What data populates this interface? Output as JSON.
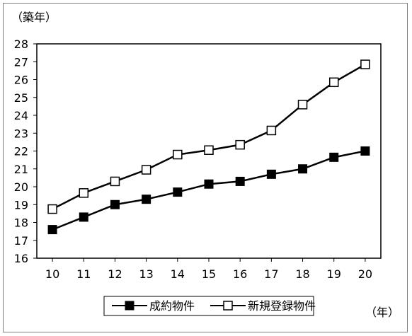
{
  "chart_data": {
    "type": "line",
    "ylabel": "（築年）",
    "xlabel": "（年）",
    "x": [
      "10",
      "11",
      "12",
      "13",
      "14",
      "15",
      "16",
      "17",
      "18",
      "19",
      "20"
    ],
    "ylim": [
      16,
      28
    ],
    "yticks": [
      "16",
      "17",
      "18",
      "19",
      "20",
      "21",
      "22",
      "23",
      "24",
      "25",
      "26",
      "27",
      "28"
    ],
    "grid": false,
    "legend_position": "bottom-center",
    "series": [
      {
        "name": "成約物件",
        "marker": "filled-square",
        "color": "#000000",
        "values": [
          17.6,
          18.3,
          19.0,
          19.3,
          19.7,
          20.15,
          20.3,
          20.7,
          21.0,
          21.65,
          22.0
        ]
      },
      {
        "name": "新規登録物件",
        "marker": "open-square",
        "color": "#000000",
        "values": [
          18.75,
          19.65,
          20.3,
          20.95,
          21.8,
          22.05,
          22.35,
          23.15,
          24.6,
          25.85,
          26.85
        ]
      }
    ]
  }
}
